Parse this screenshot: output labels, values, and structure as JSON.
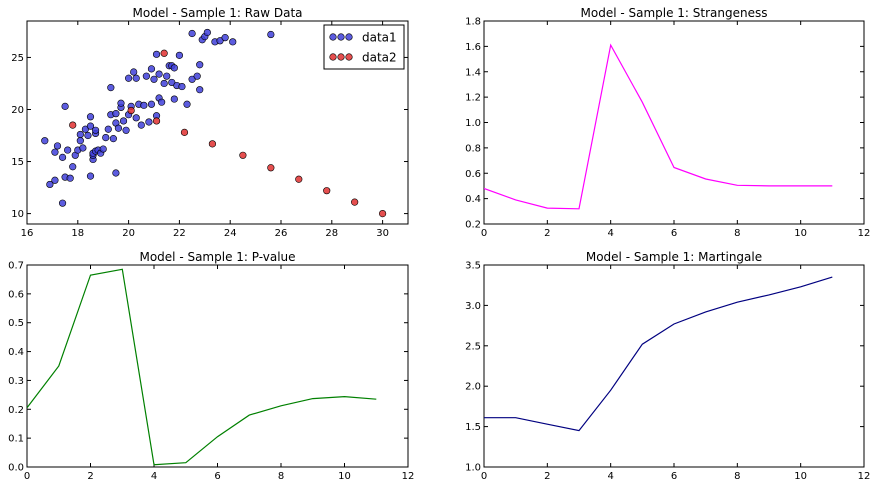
{
  "chart_data": [
    {
      "type": "scatter",
      "title": "Model - Sample 1: Raw Data",
      "xlabel": "",
      "ylabel": "",
      "xlim": [
        16,
        31
      ],
      "ylim": [
        9,
        28.5
      ],
      "xticks": [
        16,
        18,
        20,
        22,
        24,
        26,
        28,
        30
      ],
      "yticks": [
        10,
        15,
        20,
        25
      ],
      "legend_position": "top-right",
      "series": [
        {
          "name": "data1",
          "color": "#3f3fd9",
          "points": [
            [
              16.7,
              17.0
            ],
            [
              16.9,
              12.8
            ],
            [
              17.1,
              13.2
            ],
            [
              17.1,
              15.9
            ],
            [
              17.2,
              16.5
            ],
            [
              17.4,
              11.0
            ],
            [
              17.4,
              15.4
            ],
            [
              17.5,
              20.3
            ],
            [
              17.5,
              13.5
            ],
            [
              17.6,
              16.1
            ],
            [
              17.7,
              13.4
            ],
            [
              17.8,
              14.5
            ],
            [
              17.9,
              15.6
            ],
            [
              18.0,
              16.1
            ],
            [
              18.1,
              17.6
            ],
            [
              18.1,
              17.0
            ],
            [
              18.2,
              16.3
            ],
            [
              18.3,
              18.1
            ],
            [
              18.4,
              17.5
            ],
            [
              18.5,
              13.6
            ],
            [
              18.5,
              18.4
            ],
            [
              18.5,
              19.3
            ],
            [
              18.6,
              15.2
            ],
            [
              18.6,
              15.6
            ],
            [
              18.6,
              15.8
            ],
            [
              18.7,
              16.0
            ],
            [
              18.7,
              17.7
            ],
            [
              18.7,
              18.0
            ],
            [
              18.8,
              16.1
            ],
            [
              18.9,
              15.8
            ],
            [
              19.0,
              16.2
            ],
            [
              19.1,
              17.3
            ],
            [
              19.2,
              18.1
            ],
            [
              19.3,
              19.5
            ],
            [
              19.3,
              22.1
            ],
            [
              19.4,
              17.2
            ],
            [
              19.5,
              13.9
            ],
            [
              19.5,
              18.7
            ],
            [
              19.5,
              19.6
            ],
            [
              19.6,
              18.2
            ],
            [
              19.7,
              20.2
            ],
            [
              19.7,
              20.6
            ],
            [
              19.8,
              18.9
            ],
            [
              19.9,
              18.0
            ],
            [
              20.0,
              19.5
            ],
            [
              20.0,
              23.0
            ],
            [
              20.1,
              20.3
            ],
            [
              20.2,
              23.6
            ],
            [
              20.3,
              23.0
            ],
            [
              20.3,
              19.2
            ],
            [
              20.4,
              20.5
            ],
            [
              20.5,
              18.5
            ],
            [
              20.6,
              20.4
            ],
            [
              20.7,
              23.2
            ],
            [
              20.8,
              18.8
            ],
            [
              20.9,
              20.5
            ],
            [
              20.9,
              23.9
            ],
            [
              21.0,
              22.9
            ],
            [
              21.1,
              25.3
            ],
            [
              21.1,
              19.4
            ],
            [
              21.2,
              21.1
            ],
            [
              21.2,
              23.4
            ],
            [
              21.3,
              20.7
            ],
            [
              21.4,
              22.5
            ],
            [
              21.5,
              23.2
            ],
            [
              21.6,
              24.2
            ],
            [
              21.7,
              24.2
            ],
            [
              21.7,
              22.6
            ],
            [
              21.8,
              24.0
            ],
            [
              21.8,
              21.0
            ],
            [
              21.9,
              22.3
            ],
            [
              22.0,
              25.2
            ],
            [
              22.1,
              22.2
            ],
            [
              22.3,
              20.5
            ],
            [
              22.5,
              22.9
            ],
            [
              22.5,
              27.3
            ],
            [
              22.7,
              23.2
            ],
            [
              22.8,
              21.9
            ],
            [
              22.8,
              24.3
            ],
            [
              22.9,
              26.7
            ],
            [
              23.0,
              27.0
            ],
            [
              23.1,
              27.4
            ],
            [
              23.4,
              26.5
            ],
            [
              23.6,
              26.6
            ],
            [
              23.8,
              26.9
            ],
            [
              24.1,
              26.5
            ],
            [
              25.6,
              27.2
            ]
          ]
        },
        {
          "name": "data2",
          "color": "#e03030",
          "points": [
            [
              17.8,
              18.5
            ],
            [
              20.1,
              19.9
            ],
            [
              21.1,
              18.9
            ],
            [
              21.4,
              25.4
            ],
            [
              22.2,
              17.8
            ],
            [
              23.3,
              16.7
            ],
            [
              24.5,
              15.6
            ],
            [
              25.6,
              14.4
            ],
            [
              26.7,
              13.3
            ],
            [
              27.8,
              12.2
            ],
            [
              28.9,
              11.1
            ],
            [
              30.0,
              10.0
            ]
          ]
        }
      ]
    },
    {
      "type": "line",
      "title": "Model - Sample 1: Strangeness",
      "xlabel": "",
      "ylabel": "",
      "xlim": [
        0,
        12
      ],
      "ylim": [
        0.2,
        1.8
      ],
      "xticks": [
        0,
        2,
        4,
        6,
        8,
        10,
        12
      ],
      "yticks": [
        0.2,
        0.4,
        0.6,
        0.8,
        1.0,
        1.2,
        1.4,
        1.6,
        1.8
      ],
      "series": [
        {
          "color": "#ff00ff",
          "x": [
            0,
            1,
            2,
            3,
            4,
            5,
            6,
            7,
            8,
            9,
            10,
            11
          ],
          "y": [
            0.48,
            0.39,
            0.325,
            0.32,
            1.61,
            1.16,
            0.645,
            0.555,
            0.505,
            0.5,
            0.5,
            0.5
          ]
        }
      ]
    },
    {
      "type": "line",
      "title": "Model - Sample 1: P-value",
      "xlabel": "",
      "ylabel": "",
      "xlim": [
        0,
        12
      ],
      "ylim": [
        0.0,
        0.7
      ],
      "xticks": [
        0,
        2,
        4,
        6,
        8,
        10,
        12
      ],
      "yticks": [
        0.0,
        0.1,
        0.2,
        0.3,
        0.4,
        0.5,
        0.6,
        0.7
      ],
      "series": [
        {
          "color": "#008000",
          "x": [
            0,
            1,
            2,
            3,
            4,
            5,
            6,
            7,
            8,
            9,
            10,
            11
          ],
          "y": [
            0.205,
            0.35,
            0.665,
            0.685,
            0.008,
            0.015,
            0.105,
            0.18,
            0.212,
            0.237,
            0.244,
            0.235
          ]
        }
      ]
    },
    {
      "type": "line",
      "title": "Model - Sample 1: Martingale",
      "xlabel": "",
      "ylabel": "",
      "xlim": [
        0,
        12
      ],
      "ylim": [
        1.0,
        3.5
      ],
      "xticks": [
        0,
        2,
        4,
        6,
        8,
        10,
        12
      ],
      "yticks": [
        1.0,
        1.5,
        2.0,
        2.5,
        3.0,
        3.5
      ],
      "series": [
        {
          "color": "#000080",
          "x": [
            0,
            1,
            2,
            3,
            4,
            5,
            6,
            7,
            8,
            9,
            10,
            11
          ],
          "y": [
            1.61,
            1.61,
            1.53,
            1.45,
            1.95,
            2.52,
            2.77,
            2.92,
            3.04,
            3.13,
            3.23,
            3.35
          ]
        }
      ]
    }
  ]
}
